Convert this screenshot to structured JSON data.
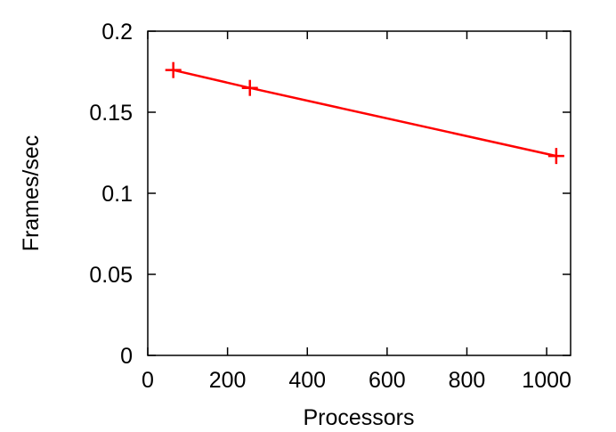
{
  "chart_data": {
    "type": "line",
    "xlabel": "Processors",
    "ylabel": "Frames/sec",
    "xlim": [
      0,
      1060
    ],
    "ylim": [
      0,
      0.2
    ],
    "xticks": [
      0,
      200,
      400,
      600,
      800,
      1000
    ],
    "xtick_labels": [
      "0",
      "200",
      "400",
      "600",
      "800",
      "1000"
    ],
    "yticks": [
      0,
      0.05,
      0.1,
      0.15,
      0.2
    ],
    "ytick_labels": [
      "0",
      "0.05",
      "0.1",
      "0.15",
      "0.2"
    ],
    "grid": false,
    "legend": "none",
    "series": [
      {
        "color": "#ff0000",
        "marker": "plus",
        "x": [
          64,
          256,
          1024
        ],
        "y": [
          0.176,
          0.165,
          0.123
        ]
      }
    ]
  }
}
